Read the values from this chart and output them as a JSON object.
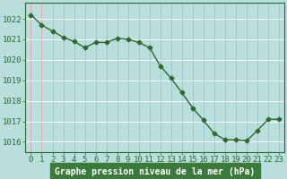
{
  "x": [
    0,
    1,
    2,
    3,
    4,
    5,
    6,
    7,
    8,
    9,
    10,
    11,
    12,
    13,
    14,
    15,
    16,
    17,
    18,
    19,
    20,
    21,
    22,
    23
  ],
  "y": [
    1022.2,
    1021.7,
    1021.4,
    1021.1,
    1020.9,
    1020.6,
    1020.85,
    1020.85,
    1021.05,
    1021.0,
    1020.85,
    1020.6,
    1019.7,
    1019.1,
    1018.4,
    1017.65,
    1017.05,
    1016.4,
    1016.1,
    1016.1,
    1016.05,
    1016.55,
    1017.1,
    1017.1
  ],
  "line_color": "#2d6a2d",
  "marker": "D",
  "marker_size": 2.5,
  "bg_color": "#b8dede",
  "grid_color_v": "#e8a0a0",
  "grid_color_h": "#ffffff",
  "ylabel_ticks": [
    1016,
    1017,
    1018,
    1019,
    1020,
    1021,
    1022
  ],
  "xlabel": "Graphe pression niveau de la mer (hPa)",
  "xlabel_bg": "#3a7a3a",
  "xlabel_text_color": "#ffffff",
  "ylim": [
    1015.5,
    1022.8
  ],
  "xlim": [
    -0.5,
    23.5
  ],
  "tick_color": "#2d6a2d",
  "xlabel_fontsize": 7,
  "tick_fontsize": 6.5,
  "linewidth": 1.0
}
